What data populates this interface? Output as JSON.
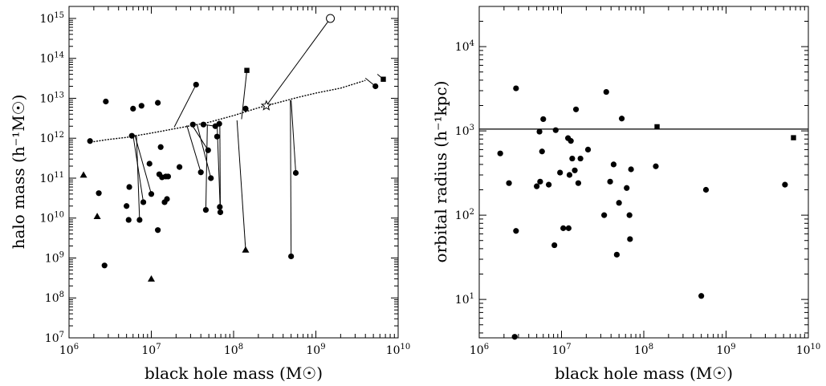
{
  "chart_data": [
    {
      "type": "scatter",
      "xlabel": "black hole mass (M☉)",
      "ylabel": "halo mass (h⁻¹M☉)",
      "xscale": "log",
      "yscale": "log",
      "xlim": [
        1000000,
        10000000000
      ],
      "ylim": [
        10000000,
        2000000000000000
      ],
      "x_tick_labels": [
        "10^6",
        "10^7",
        "10^8",
        "10^9",
        "10^10"
      ],
      "y_tick_labels": [
        "10^7",
        "10^8",
        "10^9",
        "10^10",
        "10^11",
        "10^12",
        "10^13",
        "10^14",
        "10^15"
      ],
      "grid": false,
      "series": [
        {
          "marker": "circle",
          "points": [
            [
              1800000.0,
              850000000000.0
            ],
            [
              2300000.0,
              42000000000.0
            ],
            [
              2700000.0,
              650000000.0
            ],
            [
              2800000.0,
              8300000000000.0
            ],
            [
              5000000.0,
              20000000000.0
            ],
            [
              5300000.0,
              9000000000.0
            ],
            [
              5400000.0,
              60000000000.0
            ],
            [
              5800000.0,
              1150000000000.0
            ],
            [
              6000000.0,
              5500000000000.0
            ],
            [
              7200000.0,
              9000000000.0
            ],
            [
              7600000.0,
              6500000000000.0
            ],
            [
              8000000.0,
              25000000000.0
            ],
            [
              9500000.0,
              230000000000.0
            ],
            [
              10000000.0,
              40000000000.0
            ],
            [
              12000000.0,
              7700000000000.0
            ],
            [
              12000000.0,
              5000000000.0
            ],
            [
              12500000.0,
              125000000000.0
            ],
            [
              13000000.0,
              600000000000.0
            ],
            [
              13500000.0,
              105000000000.0
            ],
            [
              14500000.0,
              25000000000.0
            ],
            [
              15000000.0,
              110000000000.0
            ],
            [
              15500000.0,
              30000000000.0
            ],
            [
              16000000.0,
              110000000000.0
            ],
            [
              22000000.0,
              190000000000.0
            ],
            [
              32000000.0,
              2200000000000.0
            ],
            [
              35000000.0,
              22000000000000.0
            ],
            [
              40000000.0,
              140000000000.0
            ],
            [
              43000000.0,
              2200000000000.0
            ],
            [
              46000000.0,
              16000000000.0
            ],
            [
              49000000.0,
              500000000000.0
            ],
            [
              53000000.0,
              100000000000.0
            ],
            [
              60000000.0,
              2000000000000.0
            ],
            [
              63000000.0,
              1100000000000.0
            ],
            [
              67000000.0,
              2300000000000.0
            ],
            [
              68000000.0,
              19000000000.0
            ],
            [
              69000000.0,
              14000000000.0
            ],
            [
              140000000.0,
              5500000000000.0
            ],
            [
              500000000.0,
              1100000000.0
            ],
            [
              570000000.0,
              135000000000.0
            ],
            [
              5300000000.0,
              20000000000000.0
            ]
          ]
        },
        {
          "marker": "triangle",
          "points": [
            [
              1500000.0,
              120000000000.0
            ],
            [
              2200000.0,
              11000000000.0
            ],
            [
              10000000.0,
              300000000.0
            ],
            [
              140000000.0,
              1600000000.0
            ]
          ]
        },
        {
          "marker": "square",
          "points": [
            [
              145000000.0,
              50000000000000.0
            ],
            [
              6600000000.0,
              30000000000000.0
            ]
          ]
        },
        {
          "marker": "open-circle",
          "points": [
            [
              1500000000.0,
              1000000000000000.0
            ]
          ]
        },
        {
          "marker": "open-star",
          "points": [
            [
              250000000.0,
              6500000000000.0
            ]
          ]
        }
      ],
      "connectors": [
        [
          [
            6000000.0,
            1200000000000.0
          ],
          [
            8000000.0,
            25000000000.0
          ]
        ],
        [
          [
            6300000.0,
            1200000000000.0
          ],
          [
            10000000.0,
            40000000000.0
          ]
        ],
        [
          [
            6600000.0,
            1200000000000.0
          ],
          [
            7200000.0,
            9000000000.0
          ]
        ],
        [
          [
            19000000.0,
            1900000000000.0
          ],
          [
            35000000.0,
            22000000000000.0
          ]
        ],
        [
          [
            27000000.0,
            2100000000000.0
          ],
          [
            40000000.0,
            140000000000.0
          ]
        ],
        [
          [
            31000000.0,
            2200000000000.0
          ],
          [
            49000000.0,
            500000000000.0
          ]
        ],
        [
          [
            36000000.0,
            2200000000000.0
          ],
          [
            53000000.0,
            100000000000.0
          ]
        ],
        [
          [
            43000000.0,
            2200000000000.0
          ],
          [
            60000000.0,
            2000000000000.0
          ]
        ],
        [
          [
            63000000.0,
            2300000000000.0
          ],
          [
            69000000.0,
            14000000000.0
          ]
        ],
        [
          [
            68000000.0,
            2400000000000.0
          ],
          [
            69000000.0,
            19000000000.0
          ]
        ],
        [
          [
            48000000.0,
            2200000000000.0
          ],
          [
            46000000.0,
            16000000000.0
          ]
        ],
        [
          [
            125000000.0,
            3000000000000.0
          ],
          [
            145000000.0,
            50000000000000.0
          ]
        ],
        [
          [
            110000000.0,
            2800000000000.0
          ],
          [
            140000000.0,
            1600000000.0
          ]
        ],
        [
          [
            250000000.0,
            6500000000000.0
          ],
          [
            1500000000.0,
            1000000000000000.0
          ]
        ],
        [
          [
            490000000.0,
            9000000000000.0
          ],
          [
            500000000.0,
            1100000000.0
          ]
        ],
        [
          [
            500000000.0,
            9000000000000.0
          ],
          [
            570000000.0,
            135000000000.0
          ]
        ],
        [
          [
            5600000000.0,
            40000000000000.0
          ],
          [
            6600000000.0,
            30000000000000.0
          ]
        ],
        [
          [
            4000000000.0,
            32000000000000.0
          ],
          [
            5300000000.0,
            20000000000000.0
          ]
        ]
      ],
      "relation_curve": [
        [
          1700000.0,
          780000000000.0
        ],
        [
          3000000.0,
          930000000000.0
        ],
        [
          5000000.0,
          1050000000000.0
        ],
        [
          10000000.0,
          1350000000000.0
        ],
        [
          20000000.0,
          1750000000000.0
        ],
        [
          50000000.0,
          2500000000000.0
        ],
        [
          100000000.0,
          3700000000000.0
        ],
        [
          200000000.0,
          5800000000000.0
        ],
        [
          300000000.0,
          7200000000000.0
        ],
        [
          600000000.0,
          10500000000000.0
        ],
        [
          1000000000.0,
          13500000000000.0
        ],
        [
          2000000000.0,
          18000000000000.0
        ],
        [
          4000000000.0,
          28000000000000.0
        ]
      ]
    },
    {
      "type": "scatter",
      "xlabel": "black hole mass (M☉)",
      "ylabel": "orbital radius (h⁻¹kpc)",
      "xscale": "log",
      "yscale": "log",
      "xlim": [
        1000000,
        10000000000
      ],
      "ylim": [
        3.5,
        30000
      ],
      "x_tick_labels": [
        "10^6",
        "10^7",
        "10^8",
        "10^9",
        "10^10"
      ],
      "y_tick_labels": [
        "10^1",
        "10^2",
        "10^3",
        "10^4"
      ],
      "grid": false,
      "reference_line_y": 1050,
      "series": [
        {
          "marker": "circle",
          "points": [
            [
              1800000.0,
              540
            ],
            [
              2300000.0,
              240
            ],
            [
              2700000.0,
              3.6
            ],
            [
              2800000.0,
              65
            ],
            [
              2800000.0,
              3200
            ],
            [
              5000000.0,
              220
            ],
            [
              5400000.0,
              980
            ],
            [
              5500000.0,
              250
            ],
            [
              5800000.0,
              570
            ],
            [
              6000000.0,
              1380
            ],
            [
              7000000.0,
              230
            ],
            [
              8200000.0,
              44
            ],
            [
              8500000.0,
              1020
            ],
            [
              9600000.0,
              320
            ],
            [
              10500000.0,
              70
            ],
            [
              12000000.0,
              820
            ],
            [
              12200000.0,
              70
            ],
            [
              12500000.0,
              300
            ],
            [
              13000000.0,
              760
            ],
            [
              13500000.0,
              470
            ],
            [
              14500000.0,
              340
            ],
            [
              15000000.0,
              1800
            ],
            [
              16000000.0,
              240
            ],
            [
              17000000.0,
              470
            ],
            [
              21000000.0,
              600
            ],
            [
              33000000.0,
              100
            ],
            [
              35000000.0,
              2900
            ],
            [
              39000000.0,
              250
            ],
            [
              43000000.0,
              400
            ],
            [
              47000000.0,
              34
            ],
            [
              50000000.0,
              140
            ],
            [
              54000000.0,
              1400
            ],
            [
              62000000.0,
              210
            ],
            [
              67000000.0,
              100
            ],
            [
              68000000.0,
              52
            ],
            [
              70000000.0,
              350
            ],
            [
              140000000.0,
              380
            ],
            [
              500000000.0,
              11
            ],
            [
              570000000.0,
              200
            ],
            [
              5200000000.0,
              230
            ]
          ]
        },
        {
          "marker": "square",
          "points": [
            [
              145000000.0,
              1120
            ],
            [
              6600000000.0,
              830
            ]
          ]
        }
      ]
    }
  ],
  "tick_text": {
    "base": "10",
    "exp_x": [
      "6",
      "7",
      "8",
      "9",
      "10"
    ],
    "exp_left_y": [
      "7",
      "8",
      "9",
      "10",
      "11",
      "12",
      "13",
      "14",
      "15"
    ],
    "exp_right_y": [
      "1",
      "2",
      "3",
      "4"
    ]
  }
}
